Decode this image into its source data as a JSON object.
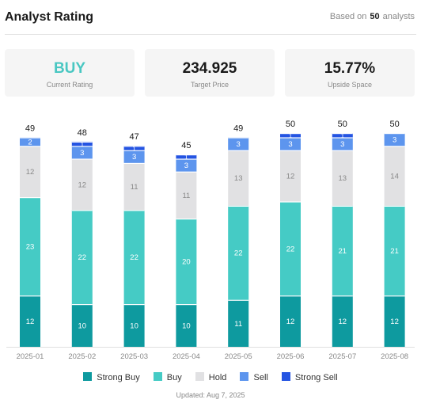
{
  "header": {
    "title": "Analyst Rating",
    "based_prefix": "Based on",
    "based_count": "50",
    "based_suffix": "analysts"
  },
  "cards": [
    {
      "value": "BUY",
      "label": "Current Rating"
    },
    {
      "value": "234.925",
      "label": "Target Price"
    },
    {
      "value": "15.77%",
      "label": "Upside Space"
    }
  ],
  "colors": {
    "strong_buy": "#0e9a9f",
    "buy": "#45cbc5",
    "hold": "#e1e1e3",
    "sell": "#5d95ee",
    "strong_sell": "#2454e2",
    "accent": "#49c7c2"
  },
  "chart_data": {
    "type": "bar",
    "stacked": true,
    "categories": [
      "2025-01",
      "2025-02",
      "2025-03",
      "2025-04",
      "2025-05",
      "2025-06",
      "2025-07",
      "2025-08"
    ],
    "totals": [
      49,
      48,
      47,
      45,
      49,
      50,
      50,
      50
    ],
    "series": [
      {
        "name": "Strong Buy",
        "values": [
          12,
          10,
          10,
          10,
          11,
          12,
          12,
          12
        ]
      },
      {
        "name": "Buy",
        "values": [
          23,
          22,
          22,
          20,
          22,
          22,
          21,
          21
        ]
      },
      {
        "name": "Hold",
        "values": [
          12,
          12,
          11,
          11,
          13,
          12,
          13,
          14
        ]
      },
      {
        "name": "Sell",
        "values": [
          2,
          3,
          3,
          3,
          3,
          3,
          3,
          3
        ]
      },
      {
        "name": "Strong Sell",
        "values": [
          0,
          1,
          1,
          1,
          0,
          1,
          1,
          0
        ]
      }
    ],
    "legend_position": "bottom",
    "grid": false
  },
  "footer": {
    "updated": "Updated: Aug 7, 2025"
  }
}
